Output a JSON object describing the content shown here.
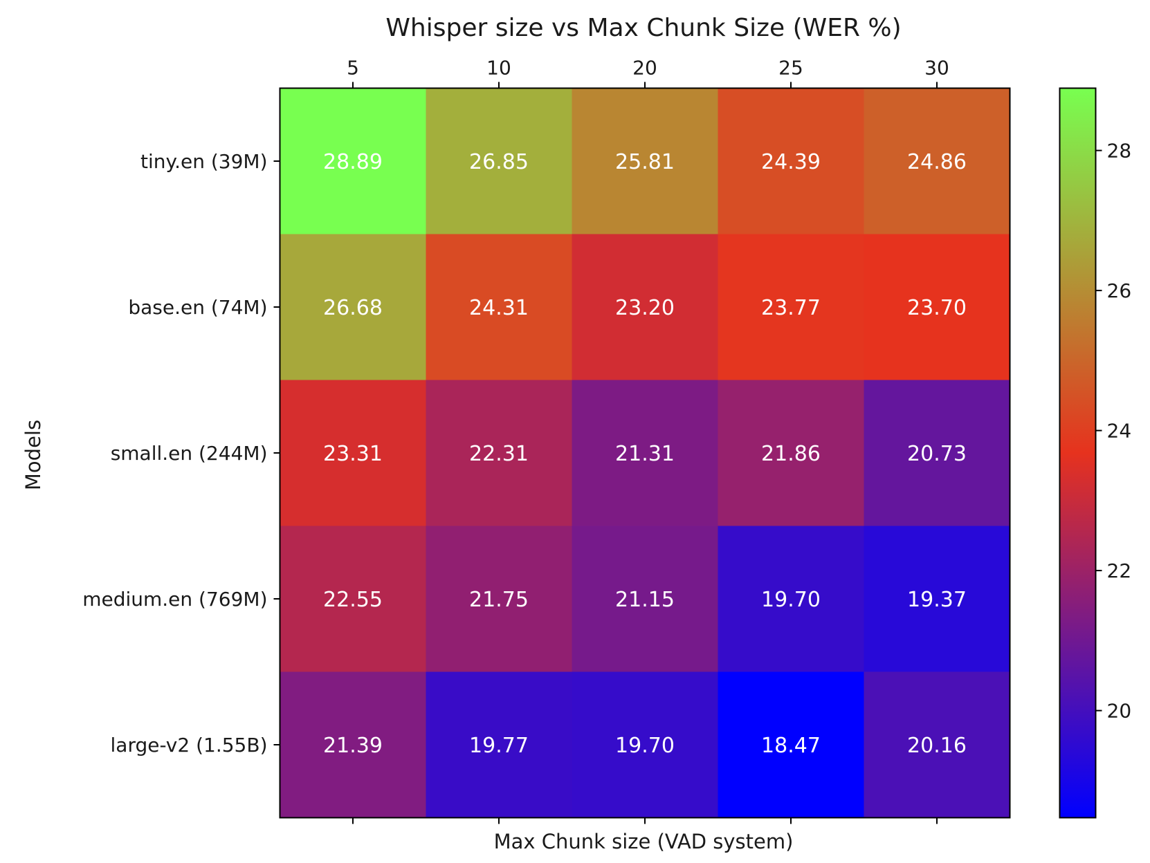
{
  "chart_data": {
    "type": "heatmap",
    "title": "Whisper size vs Max Chunk Size (WER %)",
    "xlabel": "Max Chunk size (VAD system)",
    "ylabel": "Models",
    "x_categories": [
      "5",
      "10",
      "20",
      "25",
      "30"
    ],
    "y_categories": [
      "tiny.en (39M)",
      "base.en (74M)",
      "small.en (244M)",
      "medium.en (769M)",
      "large-v2 (1.55B)"
    ],
    "values": [
      [
        28.89,
        26.85,
        25.81,
        24.39,
        24.86
      ],
      [
        26.68,
        24.31,
        23.2,
        23.77,
        23.7
      ],
      [
        23.31,
        22.31,
        21.31,
        21.86,
        20.73
      ],
      [
        22.55,
        21.75,
        21.15,
        19.7,
        19.37
      ],
      [
        21.39,
        19.77,
        19.7,
        18.47,
        20.16
      ]
    ],
    "cell_labels": [
      [
        "28.89",
        "26.85",
        "25.81",
        "24.39",
        "24.86"
      ],
      [
        "26.68",
        "24.31",
        "23.20",
        "23.77",
        "23.70"
      ],
      [
        "23.31",
        "22.31",
        "21.31",
        "21.86",
        "20.73"
      ],
      [
        "22.55",
        "21.75",
        "21.15",
        "19.70",
        "19.37"
      ],
      [
        "21.39",
        "19.77",
        "19.70",
        "18.47",
        "20.16"
      ]
    ],
    "colorbar": {
      "ticks": [
        "20",
        "22",
        "24",
        "26",
        "28"
      ],
      "colors": [
        "#0000ff",
        "#e6321e",
        "#78ff50"
      ]
    },
    "x_axis_position": "top",
    "grid": false,
    "annotation_color": "#ffffff"
  }
}
